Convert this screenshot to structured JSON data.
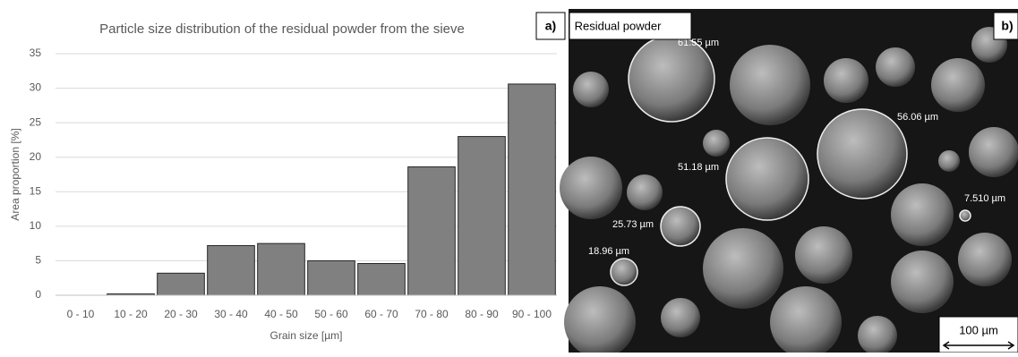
{
  "chart_data": {
    "type": "bar",
    "title": "Particle size distribution of the residual powder from the sieve",
    "x_label": "Grain size [µm]",
    "y_label": "Area proportion [%]",
    "categories": [
      "0 - 10",
      "10 - 20",
      "20 - 30",
      "30 - 40",
      "40 - 50",
      "50 - 60",
      "60 - 70",
      "70 - 80",
      "80 - 90",
      "90 - 100"
    ],
    "values": [
      0,
      0.2,
      3.2,
      7.2,
      7.5,
      5.0,
      4.6,
      18.6,
      23.0,
      30.6
    ],
    "color": "#808080",
    "ylim": [
      0,
      35
    ],
    "yticks": [
      0,
      5,
      10,
      15,
      20,
      25,
      30,
      35
    ],
    "grid": true
  },
  "panel_labels": [
    "a)",
    "b)"
  ],
  "image": {
    "caption": "Residual powder",
    "measurements": [
      "61.55 µm",
      "56.06 µm",
      "51.18 µm",
      "25.73 µm",
      "18.96 µm",
      "7.510 µm"
    ],
    "scale_bar": "100 µm"
  }
}
